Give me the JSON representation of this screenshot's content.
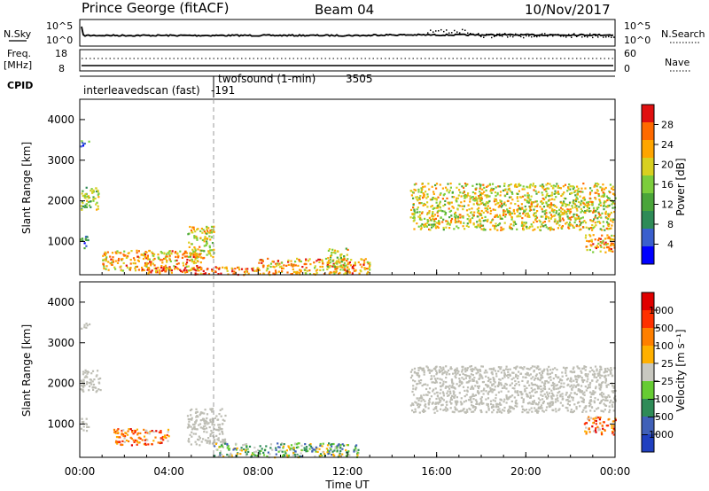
{
  "header": {
    "station": "Prince George (fitACF)",
    "beam": "Beam 04",
    "date": "10/Nov/2017"
  },
  "strip_nsky": {
    "left_label": "N.Sky",
    "right_label": "N.Search",
    "left_ticks": [
      "10^5",
      "10^0"
    ],
    "right_ticks": [
      "10^5",
      "10^0"
    ]
  },
  "strip_freq": {
    "left_label": "Freq.",
    "left_unit": "[MHz]",
    "right_label": "Nave",
    "left_ticks": [
      "18",
      "8"
    ],
    "right_ticks": [
      "60",
      "0"
    ]
  },
  "cpid": {
    "label": "CPID",
    "program_1": "interleavedscan (fast)",
    "program_1_id": "-191",
    "program_2": "twofsound (1-min)",
    "program_2_id": "3505",
    "switch_hour": 6.0
  },
  "colors": {
    "power": [
      "#0000ff",
      "#3a5fcd",
      "#2e8b57",
      "#4aa53a",
      "#7ccd3c",
      "#d8d020",
      "#ffa500",
      "#ff6a00",
      "#e01010"
    ],
    "velocity": [
      "#2040c0",
      "#4060b8",
      "#2e8b57",
      "#66cc33",
      "#c8c8c0",
      "#ffb000",
      "#ff7f00",
      "#ff3000",
      "#e00000"
    ],
    "groundscatter": "#bdbdb4"
  },
  "chart_data": [
    {
      "type": "heatmap",
      "panel": "power",
      "ylabel": "Slant Range [km]",
      "ylim": [
        180,
        4500
      ],
      "y_ticks": [
        1000,
        2000,
        3000,
        4000
      ],
      "xlim": [
        0,
        24
      ],
      "colorbar_label": "Power [dB]",
      "colorbar_ticks": [
        "4",
        "8",
        "12",
        "16",
        "20",
        "24",
        "28"
      ],
      "scatter_regions": [
        {
          "t0": 0.0,
          "t1": 0.4,
          "r0": 3350,
          "r1": 3500,
          "level": 2
        },
        {
          "t0": 0.0,
          "t1": 0.9,
          "r0": 1800,
          "r1": 2350,
          "level": 4
        },
        {
          "t0": 0.0,
          "t1": 0.4,
          "r0": 850,
          "r1": 1150,
          "level": 2
        },
        {
          "t0": 1.0,
          "t1": 5.5,
          "r0": 300,
          "r1": 800,
          "level": 6
        },
        {
          "t0": 4.8,
          "t1": 6.0,
          "r0": 550,
          "r1": 1400,
          "level": 5
        },
        {
          "t0": 3.0,
          "t1": 8.0,
          "r0": 200,
          "r1": 400,
          "level": 7
        },
        {
          "t0": 8.0,
          "t1": 13.0,
          "r0": 200,
          "r1": 600,
          "level": 6
        },
        {
          "t0": 11.0,
          "t1": 12.0,
          "r0": 350,
          "r1": 850,
          "level": 5
        },
        {
          "t0": 14.8,
          "t1": 24.0,
          "r0": 1300,
          "r1": 2450,
          "level": 5
        },
        {
          "t0": 22.6,
          "t1": 24.0,
          "r0": 750,
          "r1": 1200,
          "level": 6
        }
      ]
    },
    {
      "type": "heatmap",
      "panel": "velocity",
      "ylabel": "Slant Range [km]",
      "ylim": [
        180,
        4500
      ],
      "y_ticks": [
        1000,
        2000,
        3000,
        4000
      ],
      "xlim": [
        0,
        24
      ],
      "x_ticks": [
        "00:00",
        "04:00",
        "08:00",
        "12:00",
        "16:00",
        "20:00",
        "00:00"
      ],
      "xlabel": "Time UT",
      "colorbar_label": "Velocity [m s⁻¹]",
      "colorbar_ticks": [
        "1000",
        "500",
        "100",
        "25",
        "−25",
        "−100",
        "−500",
        "−1000"
      ],
      "scatter_regions": [
        {
          "t0": 0.0,
          "t1": 0.4,
          "r0": 3350,
          "r1": 3500,
          "kind": "ground"
        },
        {
          "t0": 0.0,
          "t1": 0.9,
          "r0": 1800,
          "r1": 2350,
          "kind": "ground"
        },
        {
          "t0": 0.0,
          "t1": 0.4,
          "r0": 850,
          "r1": 1150,
          "kind": "ground"
        },
        {
          "t0": 1.5,
          "t1": 4.0,
          "r0": 500,
          "r1": 900,
          "level": 6
        },
        {
          "t0": 4.8,
          "t1": 6.5,
          "r0": 500,
          "r1": 1400,
          "kind": "ground"
        },
        {
          "t0": 6.0,
          "t1": 12.5,
          "r0": 200,
          "r1": 550,
          "level": 3
        },
        {
          "t0": 14.8,
          "t1": 24.0,
          "r0": 1300,
          "r1": 2450,
          "kind": "ground"
        },
        {
          "t0": 22.6,
          "t1": 24.0,
          "r0": 750,
          "r1": 1200,
          "level": 6
        }
      ]
    }
  ]
}
